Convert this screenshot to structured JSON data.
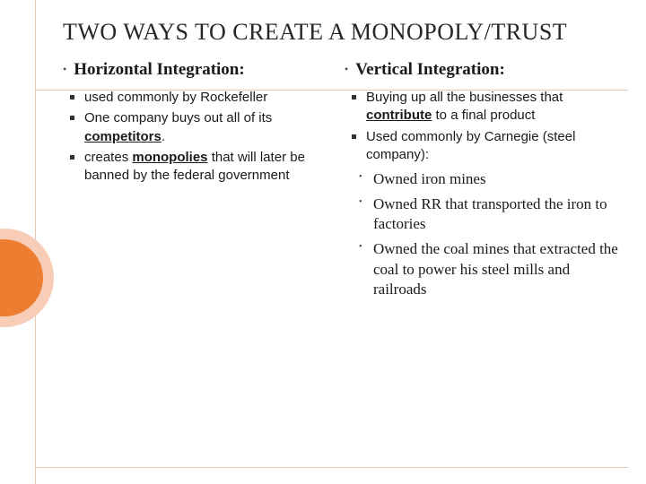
{
  "title": "TWO WAYS TO CREATE A MONOPOLY/TRUST",
  "colors": {
    "accent_orange": "#ed7d31",
    "accent_peach": "#f7cdb8",
    "guide_line": "#e9c8b8",
    "text": "#1a1a1a",
    "background": "#ffffff"
  },
  "fonts": {
    "title_family": "Georgia serif",
    "title_size_pt": 26,
    "heading_size_pt": 19,
    "body_sans_size_pt": 15,
    "body_serif_size_pt": 17
  },
  "left": {
    "heading": "Horizontal Integration:",
    "bullets": [
      {
        "pre": "used commonly by Rockefeller"
      },
      {
        "pre": "One company buys out all of its ",
        "u": "competitors",
        "post": "."
      },
      {
        "pre": "creates ",
        "u": "monopolies",
        "post": " that will later be banned by the federal government"
      }
    ]
  },
  "right": {
    "heading": "Vertical Integration:",
    "bullets": [
      {
        "pre": "Buying up all the businesses that ",
        "u": "contribute",
        "post": " to a final product"
      },
      {
        "pre": "Used commonly by Carnegie (steel company):"
      }
    ],
    "sub": [
      "Owned iron mines",
      "Owned RR that transported the iron to factories",
      "Owned the coal mines that extracted the coal to power his steel mills and railroads"
    ]
  }
}
